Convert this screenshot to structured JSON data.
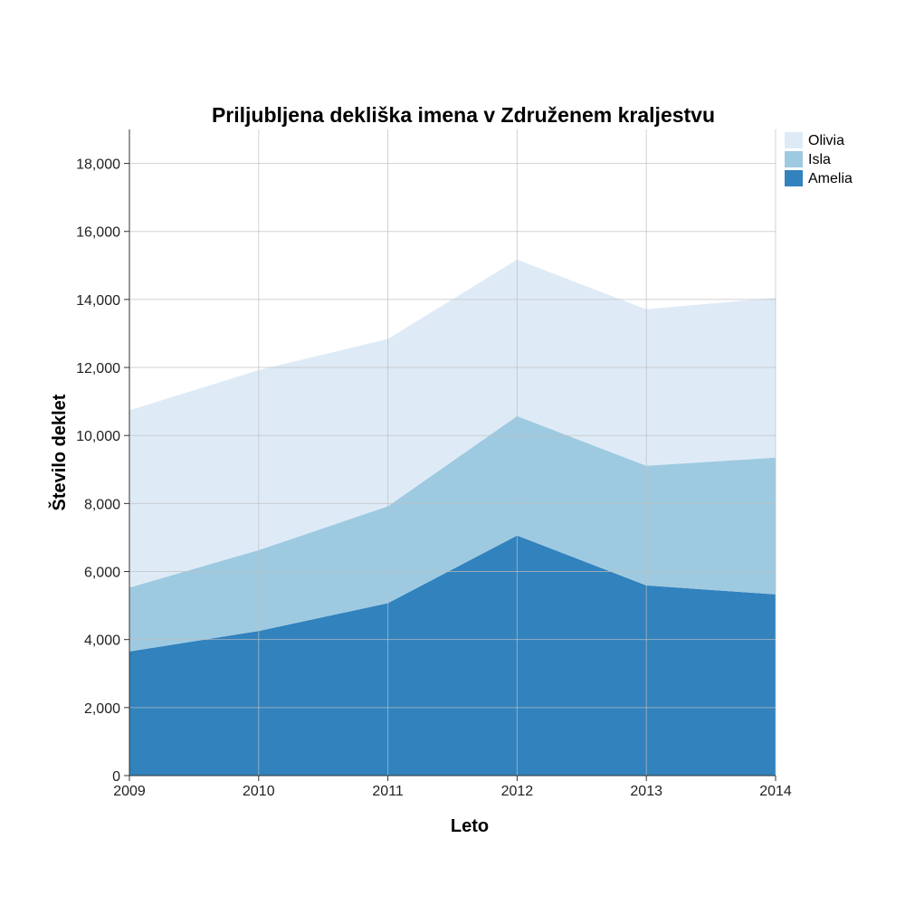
{
  "chart_data": {
    "type": "area",
    "stacked": true,
    "title": "Priljubljena dekliška imena v Združenem kraljestvu",
    "xlabel": "Leto",
    "ylabel": "Število deklet",
    "x": [
      2009,
      2010,
      2011,
      2012,
      2013,
      2014
    ],
    "x_tick_labels": [
      "2009",
      "2010",
      "2011",
      "2012",
      "2013",
      "2014"
    ],
    "ylim": [
      0,
      19000
    ],
    "y_ticks": [
      0,
      2000,
      4000,
      6000,
      8000,
      10000,
      12000,
      14000,
      16000,
      18000
    ],
    "y_tick_labels": [
      "0",
      "2,000",
      "4,000",
      "6,000",
      "8,000",
      "10,000",
      "12,000",
      "14,000",
      "16,000",
      "18,000"
    ],
    "grid": true,
    "legend_position": "top-right",
    "series": [
      {
        "name": "Amelia",
        "color": "#3182bd",
        "values": [
          3650,
          4250,
          5070,
          7060,
          5590,
          5330
        ]
      },
      {
        "name": "Isla",
        "color": "#9ecae1",
        "values": [
          1880,
          2380,
          2850,
          3510,
          3520,
          4020
        ]
      },
      {
        "name": "Olivia",
        "color": "#deebf7",
        "values": [
          5210,
          5290,
          4920,
          4600,
          4600,
          4700
        ]
      }
    ],
    "legend_order": [
      "Olivia",
      "Isla",
      "Amelia"
    ]
  }
}
